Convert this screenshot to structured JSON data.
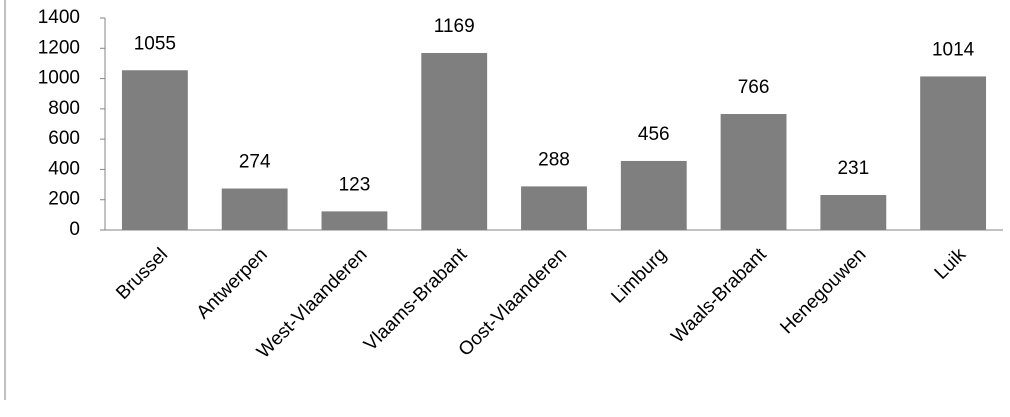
{
  "chart_data": {
    "type": "bar",
    "categories": [
      "Brussel",
      "Antwerpen",
      "West-Vlaanderen",
      "Vlaams-Brabant",
      "Oost-Vlaanderen",
      "Limburg",
      "Waals-Brabant",
      "Henegouwen",
      "Luik"
    ],
    "values": [
      1055,
      274,
      123,
      1169,
      288,
      456,
      766,
      231,
      1014
    ],
    "color": "#7f7f7f",
    "ylim": [
      0,
      1400
    ],
    "yticks": [
      0,
      200,
      400,
      600,
      800,
      1000,
      1200,
      1400
    ],
    "grid": false
  }
}
